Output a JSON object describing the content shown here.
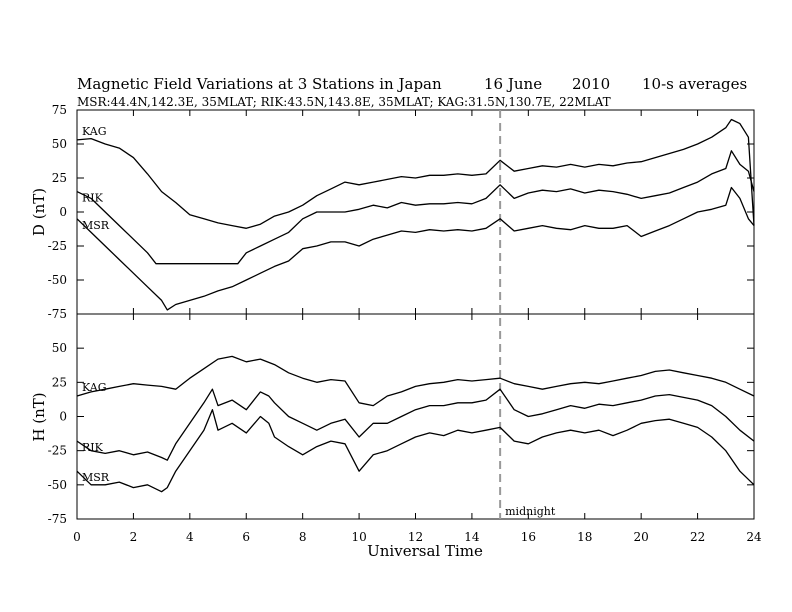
{
  "header": {
    "title": "Magnetic Field Variations at 3 Stations in Japan",
    "date": "16 June",
    "year": "2010",
    "averaging": "10-s averages",
    "stations_line": "MSR:44.4N,142.3E, 35MLAT;  RIK:43.5N,143.8E, 35MLAT;  KAG:31.5N,130.7E, 22MLAT"
  },
  "chart_data": [
    {
      "type": "line",
      "panel": "D",
      "ylabel": "D (nT)",
      "xlabel": "",
      "xlim": [
        0,
        24
      ],
      "ylim": [
        -75,
        75
      ],
      "yticks": [
        75,
        50,
        25,
        0,
        -25,
        -50,
        -75
      ],
      "series": [
        {
          "name": "KAG",
          "x": [
            0,
            0.5,
            1,
            1.5,
            2,
            2.5,
            3,
            3.5,
            4,
            4.5,
            5,
            5.5,
            6,
            6.5,
            7,
            7.5,
            8,
            8.5,
            9,
            9.5,
            10,
            10.5,
            11,
            11.5,
            12,
            12.5,
            13,
            13.5,
            14,
            14.5,
            15,
            15.5,
            16,
            16.5,
            17,
            17.5,
            18,
            18.5,
            19,
            19.5,
            20,
            20.5,
            21,
            21.5,
            22,
            22.5,
            23,
            23.2,
            23.5,
            23.8,
            24
          ],
          "y": [
            53,
            54,
            50,
            47,
            40,
            28,
            15,
            7,
            -2,
            -5,
            -8,
            -10,
            -12,
            -9,
            -3,
            0,
            5,
            12,
            17,
            22,
            20,
            22,
            24,
            26,
            25,
            27,
            27,
            28,
            27,
            28,
            38,
            30,
            32,
            34,
            33,
            35,
            33,
            35,
            34,
            36,
            37,
            40,
            43,
            46,
            50,
            55,
            62,
            68,
            65,
            55,
            -10
          ]
        },
        {
          "name": "RIK",
          "x": [
            0,
            0.5,
            1,
            1.5,
            2,
            2.5,
            2.8,
            3.5,
            4,
            4.5,
            5,
            5.5,
            5.7,
            6,
            6.5,
            7,
            7.5,
            8,
            8.5,
            9,
            9.5,
            10,
            10.5,
            11,
            11.5,
            12,
            12.5,
            13,
            13.5,
            14,
            14.5,
            15,
            15.5,
            16,
            16.5,
            17,
            17.5,
            18,
            18.5,
            19,
            19.5,
            20,
            20.5,
            21,
            21.5,
            22,
            22.5,
            23,
            23.2,
            23.5,
            23.8,
            24
          ],
          "y": [
            15,
            10,
            0,
            -10,
            -20,
            -30,
            -38,
            -38,
            -38,
            -38,
            -38,
            -38,
            -38,
            -30,
            -25,
            -20,
            -15,
            -5,
            0,
            0,
            0,
            2,
            5,
            3,
            7,
            5,
            6,
            6,
            7,
            6,
            10,
            20,
            10,
            14,
            16,
            15,
            17,
            14,
            16,
            15,
            13,
            10,
            12,
            14,
            18,
            22,
            28,
            32,
            45,
            35,
            30,
            15
          ]
        },
        {
          "name": "MSR",
          "x": [
            0,
            0.5,
            1,
            1.5,
            2,
            2.5,
            3,
            3.2,
            3.5,
            4,
            4.5,
            5,
            5.5,
            6,
            6.5,
            7,
            7.5,
            8,
            8.5,
            9,
            9.5,
            10,
            10.5,
            11,
            11.5,
            12,
            12.5,
            13,
            13.5,
            14,
            14.5,
            15,
            15.5,
            16,
            16.5,
            17,
            17.5,
            18,
            18.5,
            19,
            19.5,
            20,
            20.5,
            21,
            21.5,
            22,
            22.5,
            23,
            23.2,
            23.5,
            23.8,
            24
          ],
          "y": [
            -5,
            -15,
            -25,
            -35,
            -45,
            -55,
            -65,
            -72,
            -68,
            -65,
            -62,
            -58,
            -55,
            -50,
            -45,
            -40,
            -36,
            -27,
            -25,
            -22,
            -22,
            -25,
            -20,
            -17,
            -14,
            -15,
            -13,
            -14,
            -13,
            -14,
            -12,
            -5,
            -14,
            -12,
            -10,
            -12,
            -13,
            -10,
            -12,
            -12,
            -10,
            -18,
            -14,
            -10,
            -5,
            0,
            2,
            5,
            18,
            10,
            -5,
            -10
          ]
        }
      ]
    },
    {
      "type": "line",
      "panel": "H",
      "ylabel": "H (nT)",
      "xlabel": "Universal Time",
      "xlim": [
        0,
        24
      ],
      "ylim": [
        -75,
        75
      ],
      "yticks": [
        50,
        25,
        0,
        -25,
        -50,
        -75
      ],
      "xticks": [
        0,
        2,
        4,
        6,
        8,
        10,
        12,
        14,
        16,
        18,
        20,
        22,
        24
      ],
      "annotation": {
        "x": 15,
        "text": "midnight"
      },
      "series": [
        {
          "name": "KAG",
          "x": [
            0,
            0.5,
            1,
            1.5,
            2,
            2.5,
            3,
            3.5,
            4,
            4.5,
            5,
            5.5,
            6,
            6.5,
            7,
            7.5,
            8,
            8.5,
            9,
            9.5,
            10,
            10.5,
            11,
            11.5,
            12,
            12.5,
            13,
            13.5,
            14,
            14.5,
            15,
            15.5,
            16,
            16.5,
            17,
            17.5,
            18,
            18.5,
            19,
            19.5,
            20,
            20.5,
            21,
            21.5,
            22,
            22.5,
            23,
            23.5,
            24
          ],
          "y": [
            15,
            18,
            20,
            22,
            24,
            23,
            22,
            20,
            28,
            35,
            42,
            44,
            40,
            42,
            38,
            32,
            28,
            25,
            27,
            26,
            10,
            8,
            15,
            18,
            22,
            24,
            25,
            27,
            26,
            27,
            28,
            24,
            22,
            20,
            22,
            24,
            25,
            24,
            26,
            28,
            30,
            33,
            34,
            32,
            30,
            28,
            25,
            20,
            15
          ]
        },
        {
          "name": "RIK",
          "x": [
            0,
            0.5,
            1,
            1.5,
            2,
            2.5,
            3,
            3.2,
            3.5,
            4,
            4.5,
            4.8,
            5,
            5.5,
            6,
            6.5,
            6.8,
            7,
            7.5,
            8,
            8.5,
            9,
            9.5,
            10,
            10.5,
            11,
            11.5,
            12,
            12.5,
            13,
            13.5,
            14,
            14.5,
            15,
            15.5,
            16,
            16.5,
            17,
            17.5,
            18,
            18.5,
            19,
            19.5,
            20,
            20.5,
            21,
            21.5,
            22,
            22.5,
            23,
            23.5,
            24
          ],
          "y": [
            -18,
            -25,
            -27,
            -25,
            -28,
            -26,
            -30,
            -32,
            -20,
            -5,
            10,
            20,
            8,
            12,
            5,
            18,
            15,
            10,
            0,
            -5,
            -10,
            -5,
            -2,
            -15,
            -5,
            -5,
            0,
            5,
            8,
            8,
            10,
            10,
            12,
            20,
            5,
            0,
            2,
            5,
            8,
            6,
            9,
            8,
            10,
            12,
            15,
            16,
            14,
            12,
            8,
            0,
            -10,
            -18
          ]
        },
        {
          "name": "MSR",
          "x": [
            0,
            0.5,
            1,
            1.5,
            2,
            2.5,
            3,
            3.2,
            3.5,
            4,
            4.5,
            4.8,
            5,
            5.5,
            6,
            6.5,
            6.8,
            7,
            7.5,
            8,
            8.5,
            9,
            9.5,
            10,
            10.5,
            11,
            11.5,
            12,
            12.5,
            13,
            13.5,
            14,
            14.5,
            15,
            15.5,
            16,
            16.5,
            17,
            17.5,
            18,
            18.5,
            19,
            19.5,
            20,
            20.5,
            21,
            21.5,
            22,
            22.5,
            23,
            23.5,
            24
          ],
          "y": [
            -40,
            -50,
            -50,
            -48,
            -52,
            -50,
            -55,
            -52,
            -40,
            -25,
            -10,
            5,
            -10,
            -5,
            -12,
            0,
            -5,
            -15,
            -22,
            -28,
            -22,
            -18,
            -20,
            -40,
            -28,
            -25,
            -20,
            -15,
            -12,
            -14,
            -10,
            -12,
            -10,
            -8,
            -18,
            -20,
            -15,
            -12,
            -10,
            -12,
            -10,
            -14,
            -10,
            -5,
            -3,
            -2,
            -5,
            -8,
            -15,
            -25,
            -40,
            -50
          ]
        }
      ]
    }
  ]
}
